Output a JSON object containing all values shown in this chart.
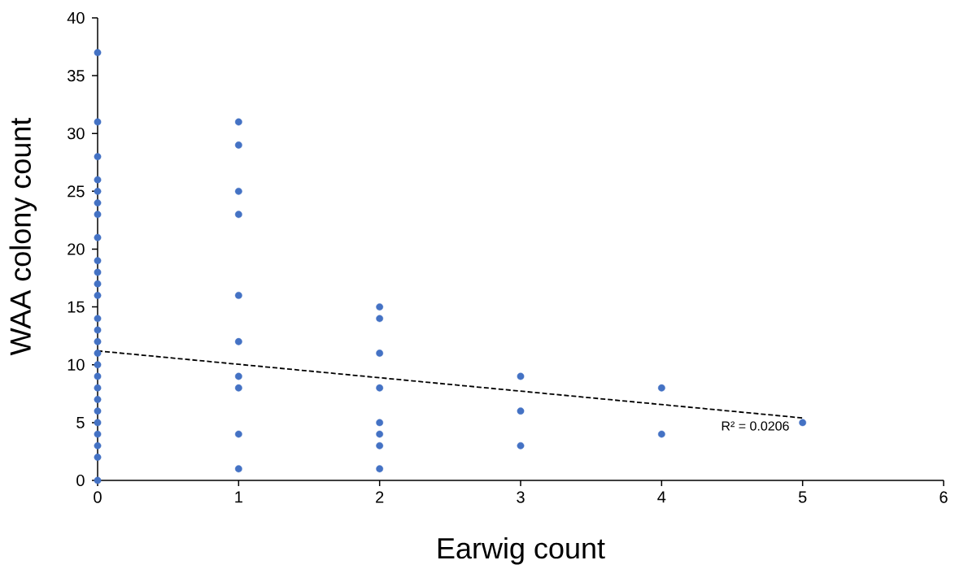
{
  "chart_data": {
    "type": "scatter",
    "xlabel": "Earwig count",
    "ylabel": "WAA colony count",
    "xlim": [
      0,
      6
    ],
    "xticks": [
      0,
      1,
      2,
      3,
      4,
      5,
      6
    ],
    "ylim": [
      0,
      40
    ],
    "yticks": [
      0,
      5,
      10,
      15,
      20,
      25,
      30,
      35,
      40
    ],
    "grid": false,
    "marker": "circle",
    "series": [
      {
        "color": "#4472c4",
        "x": [
          0,
          0,
          0,
          0,
          0,
          0,
          0,
          0,
          0,
          0,
          0,
          0,
          0,
          0,
          0,
          0,
          0,
          0,
          0,
          0,
          0,
          0,
          0,
          0,
          0,
          0,
          1,
          1,
          1,
          1,
          1,
          1,
          1,
          1,
          1,
          1,
          2,
          2,
          2,
          2,
          2,
          2,
          2,
          2,
          3,
          3,
          3,
          4,
          4,
          5
        ],
        "values": [
          37,
          31,
          28,
          26,
          25,
          24,
          23,
          21,
          19,
          18,
          17,
          16,
          14,
          13,
          12,
          11,
          10,
          9,
          8,
          7,
          6,
          5,
          4,
          3,
          2,
          0,
          31,
          29,
          25,
          23,
          16,
          12,
          9,
          8,
          4,
          1,
          15,
          14,
          11,
          8,
          5,
          4,
          3,
          1,
          9,
          6,
          3,
          8,
          4,
          5
        ]
      },
      {
        "type": "line",
        "color": "#000000",
        "marker": "none",
        "line_style": "dashed",
        "x": [
          0,
          5
        ],
        "values": [
          11.2,
          5.4
        ]
      }
    ],
    "annotations": [
      "R² = 0.0206"
    ]
  }
}
